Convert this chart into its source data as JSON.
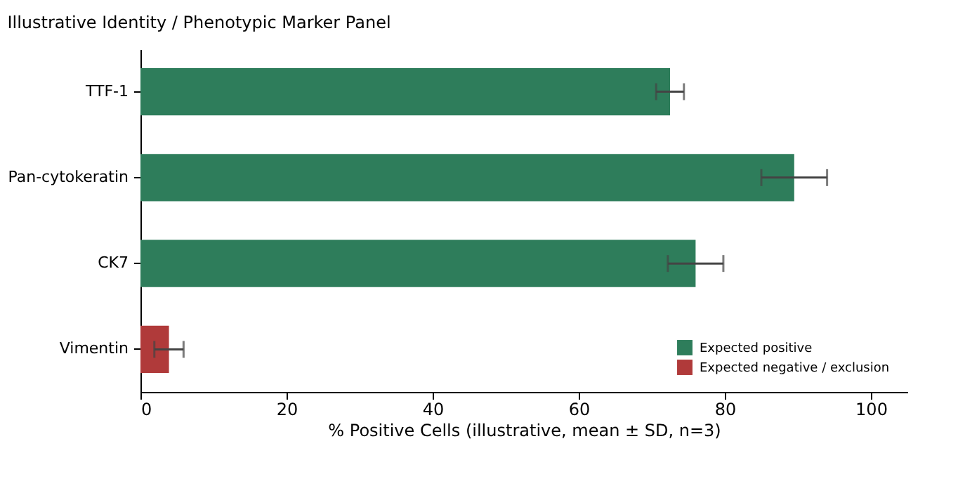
{
  "chart_data": {
    "type": "bar",
    "orientation": "horizontal",
    "title": "Illustrative Identity / Phenotypic Marker Panel",
    "xlabel": "% Positive Cells (illustrative, mean ± SD, n=3)",
    "categories": [
      "TTF-1",
      "Pan-cytokeratin",
      "CK7",
      "Vimentin"
    ],
    "series": [
      {
        "name": "Expected positive",
        "color": "#2e7d5b",
        "values": [
          72.5,
          89.5,
          76.0,
          null
        ],
        "errors": [
          1.9,
          4.5,
          3.8,
          null
        ]
      },
      {
        "name": "Expected negative / exclusion",
        "color": "#b03a3a",
        "values": [
          null,
          null,
          null,
          3.9
        ],
        "errors": [
          null,
          null,
          null,
          2.0
        ]
      }
    ],
    "xlim": [
      0,
      105
    ],
    "xticks": [
      0,
      20,
      40,
      60,
      80,
      100
    ],
    "grid": false,
    "legend": "bottom right"
  }
}
